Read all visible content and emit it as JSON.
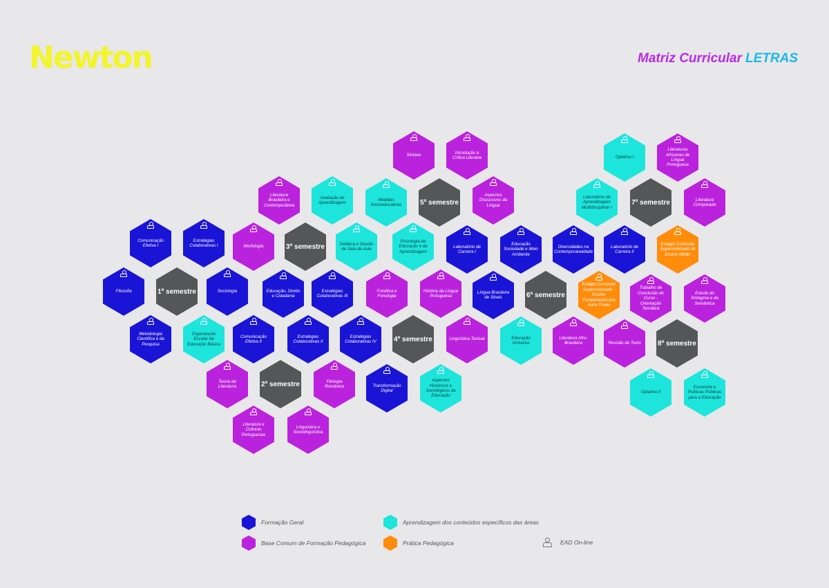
{
  "header": {
    "logo": "Newton",
    "title_prefix": "Matriz Curricular",
    "title_highlight": "LETRAS"
  },
  "colors": {
    "geral": "#1a14d6",
    "pedag": "#bb22dd",
    "espec": "#1de5dc",
    "prat": "#ff8c0a",
    "sem": "#555658"
  },
  "hexes": [
    {
      "cat": "espec",
      "label": "Optativa I",
      "ead": true
    },
    {
      "cat": "pedag",
      "label": "Literaturas Africanas de Língua Portuguesa",
      "ead": true
    },
    {
      "cat": "pedag",
      "label": "Sintaxe",
      "ead": true
    },
    {
      "cat": "pedag",
      "label": "Introdução à Crítica Literária",
      "ead": true
    },
    {
      "cat": "pedag",
      "label": "Literatura Brasileira e Contemporânea",
      "ead": true
    },
    {
      "cat": "espec",
      "label": "Avaliação de Aprendizagem",
      "ead": true
    },
    {
      "cat": "espec",
      "label": "Medidas Socioeducativas",
      "ead": true
    },
    {
      "cat": "sem",
      "label": "5º semestre",
      "ead": false
    },
    {
      "cat": "pedag",
      "label": "Aspectos Discursivos da Língua",
      "ead": true
    },
    {
      "cat": "espec",
      "label": "Laboratório de Aprendizagem Multidisciplinar I",
      "ead": true
    },
    {
      "cat": "sem",
      "label": "7º semestre",
      "ead": false
    },
    {
      "cat": "pedag",
      "label": "Literatura Comparada",
      "ead": true
    },
    {
      "cat": "geral",
      "label": "Comunicação Efetiva I",
      "ead": true
    },
    {
      "cat": "geral",
      "label": "Estratégias Colaborativas I",
      "ead": true
    },
    {
      "cat": "pedag",
      "label": "Morfologia",
      "ead": true
    },
    {
      "cat": "sem",
      "label": "3º semestre",
      "ead": false
    },
    {
      "cat": "espec",
      "label": "Didática e Gestão de Sala de Aula",
      "ead": true
    },
    {
      "cat": "espec",
      "label": "Psicologia da Educação e da Aprendizagem",
      "ead": true
    },
    {
      "cat": "geral",
      "label": "Laboratório de Carreira I",
      "ead": true
    },
    {
      "cat": "geral",
      "label": "Educação Sociedade e Meio Ambiente",
      "ead": true
    },
    {
      "cat": "geral",
      "label": "Diversidades na Contemporaneidade",
      "ead": true
    },
    {
      "cat": "geral",
      "label": "Laboratório de Carreira II",
      "ead": true
    },
    {
      "cat": "prat",
      "label": "Estágio Curricular Supervisionado de Ensino Médio",
      "ead": true
    },
    {
      "cat": "geral",
      "label": "Filosofia",
      "ead": true
    },
    {
      "cat": "sem",
      "label": "1º semestre",
      "ead": false
    },
    {
      "cat": "geral",
      "label": "Sociologia",
      "ead": true
    },
    {
      "cat": "geral",
      "label": "Educação, Direito e Cidadania",
      "ead": true
    },
    {
      "cat": "geral",
      "label": "Estratégias Colaborativas III",
      "ead": true
    },
    {
      "cat": "pedag",
      "label": "Fonética e Fonologia",
      "ead": true
    },
    {
      "cat": "pedag",
      "label": "História da Língua Portuguesa",
      "ead": true
    },
    {
      "cat": "geral",
      "label": "Língua Brasileira de Sinais",
      "ead": true
    },
    {
      "cat": "sem",
      "label": "6º semestre",
      "ead": false
    },
    {
      "cat": "prat",
      "label": "Estágio Curricular Supervisionado - Ensino Fundamental dos Anos Finais",
      "ead": true
    },
    {
      "cat": "pedag",
      "label": "Trabalho de Conclusão de Curso - Orientação Temática",
      "ead": true
    },
    {
      "cat": "pedag",
      "label": "Estudo do Sintagma e da Semântica",
      "ead": true
    },
    {
      "cat": "geral",
      "label": "Metodologia Científica e da Pesquisa",
      "ead": true
    },
    {
      "cat": "espec",
      "label": "Organização Escolar da Educação Básica",
      "ead": true
    },
    {
      "cat": "geral",
      "label": "Comunicação Efetiva II",
      "ead": true
    },
    {
      "cat": "geral",
      "label": "Estratégias Colaborativas II",
      "ead": true
    },
    {
      "cat": "geral",
      "label": "Estratégias Colaborativas IV",
      "ead": true
    },
    {
      "cat": "sem",
      "label": "4º semestre",
      "ead": false
    },
    {
      "cat": "pedag",
      "label": "Linguística Textual",
      "ead": true
    },
    {
      "cat": "espec",
      "label": "Educação Inclusiva",
      "ead": true
    },
    {
      "cat": "pedag",
      "label": "Literatura Afro-Brasileira",
      "ead": true
    },
    {
      "cat": "pedag",
      "label": "Revisão de Texto",
      "ead": true
    },
    {
      "cat": "sem",
      "label": "8º semestre",
      "ead": false
    },
    {
      "cat": "pedag",
      "label": "Teoria da Literatura",
      "ead": true
    },
    {
      "cat": "sem",
      "label": "2º semestre",
      "ead": false
    },
    {
      "cat": "pedag",
      "label": "Filologia Românica",
      "ead": true
    },
    {
      "cat": "geral",
      "label": "Transformação Digital",
      "ead": true
    },
    {
      "cat": "espec",
      "label": "Aspectos Históricos e Sociológicos da Educação",
      "ead": true
    },
    {
      "cat": "espec",
      "label": "Optativa II",
      "ead": true
    },
    {
      "cat": "espec",
      "label": "Economia e Políticas Públicas para a Educação",
      "ead": true
    },
    {
      "cat": "pedag",
      "label": "Literatura e Culturas Portuguesas",
      "ead": true
    },
    {
      "cat": "pedag",
      "label": "Linguística e Sociolinguística",
      "ead": true
    }
  ],
  "legend": [
    {
      "cat": "geral",
      "label": "Formação Geral"
    },
    {
      "cat": "espec",
      "label": "Aprendizagem dos conteúdos específicos das áreas"
    },
    {
      "cat": "pedag",
      "label": "Base Comum de Formação Pedagógica"
    },
    {
      "cat": "prat",
      "label": "Prática Pedagógica"
    },
    {
      "cat": "ead",
      "label": "EAD On-line"
    }
  ]
}
